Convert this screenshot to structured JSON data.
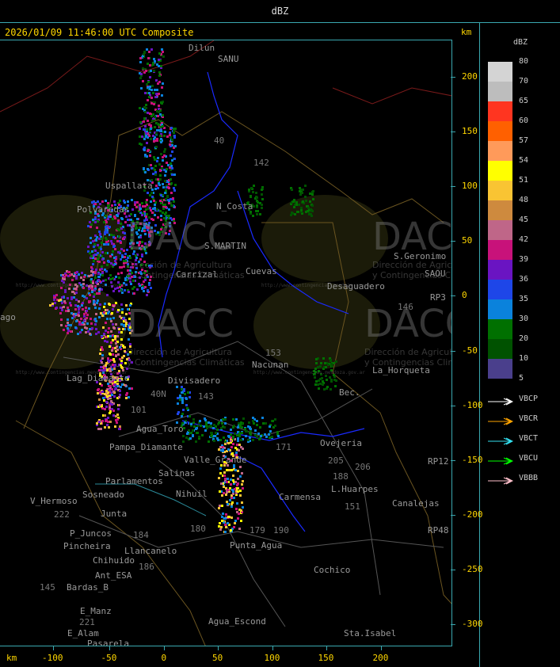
{
  "header": {
    "title": "dBZ"
  },
  "map": {
    "title": "2026/01/09 11:46:00 UTC Composite",
    "km_label": "km",
    "x_ticks": [
      "-100",
      "-50",
      "0",
      "50",
      "100",
      "150",
      "200"
    ],
    "y_ticks": [
      "200",
      "150",
      "100",
      "50",
      "0",
      "-50",
      "-100",
      "-150",
      "-200",
      "-250",
      "-300"
    ],
    "places": [
      "Dilun",
      "SANU",
      "Uspallata",
      "Polvaredas",
      "N_Costa",
      "S.MARTIN",
      "Carrizal",
      "Cuevas",
      "Desaguadero",
      "S.Geronimo",
      "SAOU",
      "ago",
      "Lag_Diamante",
      "Divisadero",
      "Nacunan",
      "La_Horqueta",
      "Bec.",
      "Agua_Toro",
      "Pampa_Diamante",
      "Valle_Grande",
      "Salinas",
      "Parlamentos",
      "Sosneado",
      "Nihuil",
      "V_Hermoso",
      "Junta",
      "P_Juncos",
      "Pincheira",
      "Llancanelo",
      "Chihuido",
      "Ant_ESA",
      "Bardas_B",
      "Punta_Agua",
      "Carmensa",
      "L.Huarpes",
      "Canalejas",
      "Ovejeria",
      "Cochico",
      "E_Manz",
      "E_Alam",
      "Pasarela",
      "Agua_Escond",
      "Sta.Isabel",
      "RP3",
      "RP12",
      "RP48"
    ],
    "numbers": [
      "40",
      "142",
      "153",
      "146",
      "143",
      "101",
      "184",
      "180",
      "205",
      "206",
      "151",
      "188",
      "190",
      "179",
      "171",
      "222",
      "186",
      "145",
      "221",
      "40N"
    ],
    "watermark": {
      "logo": "DACC",
      "line1": "Dirección de Agricultura",
      "line2": "y Contingencias Climáticas",
      "url": "http://www.contingencias.mendoza.gov.ar"
    }
  },
  "legend": {
    "title": "dBZ",
    "colors": [
      "#d4d4d4",
      "#bdbdbd",
      "#ff3520",
      "#ff6000",
      "#ff9a5a",
      "#ffff00",
      "#f9c433",
      "#ce8a3e",
      "#bf6688",
      "#c8127a",
      "#6a14c2",
      "#1e46e8",
      "#0a82dc",
      "#007000",
      "#005200",
      "#4a3f8c"
    ],
    "levels": [
      "80",
      "70",
      "65",
      "60",
      "57",
      "54",
      "51",
      "48",
      "45",
      "42",
      "39",
      "36",
      "35",
      "30",
      "20",
      "10",
      "5"
    ],
    "radars": [
      {
        "name": "VBCP",
        "color": "#ffffff"
      },
      {
        "name": "VBCR",
        "color": "#ffa500"
      },
      {
        "name": "VBCT",
        "color": "#33e0f0"
      },
      {
        "name": "VBCU",
        "color": "#00ff00"
      },
      {
        "name": "VBBB",
        "color": "#ffc0cb"
      }
    ]
  }
}
